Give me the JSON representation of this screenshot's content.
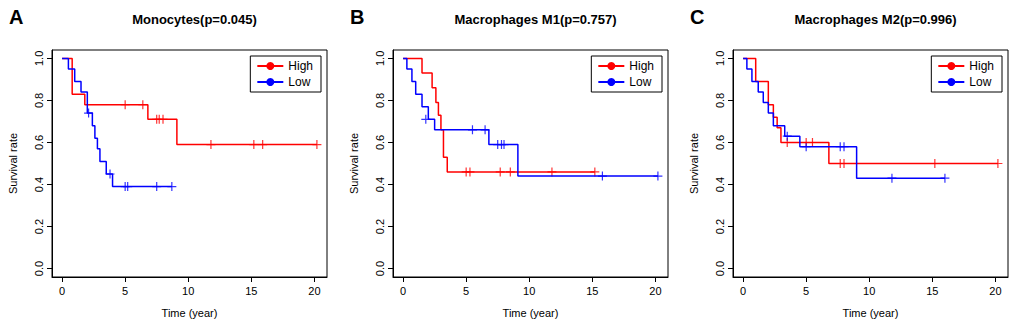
{
  "chart_data": [
    {
      "type": "line",
      "annotation": "A",
      "title": "Monocytes(p=0.045)",
      "x_label": "Time (year)",
      "y_label": "Survival rate",
      "xlim": [
        -0.8,
        21
      ],
      "xticks": [
        0,
        5,
        10,
        15,
        20
      ],
      "ylim": [
        -0.04,
        1.04
      ],
      "yticks": [
        {
          "value": 0,
          "label": "0.0"
        },
        0.2,
        0.4,
        0.6,
        0.8,
        {
          "value": 1,
          "label": "1.0"
        }
      ],
      "legend": "top-right",
      "grid": false,
      "line_style": "step",
      "series": [
        {
          "name": "High",
          "color": "#ff0000",
          "marker": "plus",
          "x": [
            0,
            0.8,
            1.8,
            6.8,
            9.1,
            20.2
          ],
          "values": [
            1,
            0.83,
            0.78,
            0.71,
            0.59,
            0.59
          ],
          "censored_x": [
            5.0,
            6.4,
            7.5,
            7.7,
            8.0,
            11.8,
            15.2,
            15.9,
            20.2
          ],
          "censored_values": [
            0.78,
            0.78,
            0.71,
            0.71,
            0.71,
            0.59,
            0.59,
            0.59,
            0.59
          ]
        },
        {
          "name": "Low",
          "color": "#0000ff",
          "marker": "plus",
          "x": [
            0,
            0.5,
            1.0,
            1.5,
            2.0,
            2.4,
            2.6,
            2.8,
            3.0,
            3.5,
            4.0,
            8.7
          ],
          "values": [
            1,
            0.95,
            0.89,
            0.84,
            0.74,
            0.68,
            0.62,
            0.57,
            0.51,
            0.45,
            0.39,
            0.39
          ],
          "censored_x": [
            2.1,
            3.8,
            5.0,
            5.2,
            7.5,
            8.7
          ],
          "censored_values": [
            0.74,
            0.45,
            0.39,
            0.39,
            0.39,
            0.39
          ]
        }
      ]
    },
    {
      "type": "line",
      "annotation": "B",
      "title": "Macrophages M1(p=0.757)",
      "x_label": "Time (year)",
      "y_label": "Survival rate",
      "xlim": [
        -0.8,
        21
      ],
      "xticks": [
        0,
        5,
        10,
        15,
        20
      ],
      "ylim": [
        -0.04,
        1.04
      ],
      "yticks": [
        {
          "value": 0,
          "label": "0.0"
        },
        0.2,
        0.4,
        0.6,
        0.8,
        {
          "value": 1,
          "label": "1.0"
        }
      ],
      "legend": "top-right",
      "grid": false,
      "line_style": "step",
      "series": [
        {
          "name": "High",
          "color": "#ff0000",
          "marker": "plus",
          "x": [
            0,
            1.5,
            2.3,
            2.6,
            2.8,
            3.0,
            3.2,
            3.5,
            15.2
          ],
          "values": [
            1,
            0.93,
            0.86,
            0.79,
            0.73,
            0.66,
            0.53,
            0.46,
            0.46
          ],
          "censored_x": [
            5.0,
            5.3,
            7.7,
            8.5,
            11.8,
            15.2
          ],
          "censored_values": [
            0.46,
            0.46,
            0.46,
            0.46,
            0.46,
            0.46
          ]
        },
        {
          "name": "Low",
          "color": "#0000ff",
          "marker": "plus",
          "x": [
            0,
            0.3,
            0.7,
            1.0,
            1.5,
            2.0,
            2.5,
            6.8,
            9.1,
            20.2
          ],
          "values": [
            1,
            0.95,
            0.89,
            0.83,
            0.77,
            0.71,
            0.66,
            0.59,
            0.44,
            0.44
          ],
          "censored_x": [
            1.8,
            5.5,
            6.5,
            7.5,
            7.8,
            8.0,
            15.8,
            20.2
          ],
          "censored_values": [
            0.71,
            0.66,
            0.66,
            0.59,
            0.59,
            0.59,
            0.44,
            0.44
          ]
        }
      ]
    },
    {
      "type": "line",
      "annotation": "C",
      "title": "Macrophages M2(p=0.996)",
      "x_label": "Time (year)",
      "y_label": "Survival rate",
      "xlim": [
        -0.8,
        21
      ],
      "xticks": [
        0,
        5,
        10,
        15,
        20
      ],
      "ylim": [
        -0.04,
        1.04
      ],
      "yticks": [
        {
          "value": 0,
          "label": "0.0"
        },
        0.2,
        0.4,
        0.6,
        0.8,
        {
          "value": 1,
          "label": "1.0"
        }
      ],
      "legend": "top-right",
      "grid": false,
      "line_style": "step",
      "series": [
        {
          "name": "High",
          "color": "#ff0000",
          "marker": "plus",
          "x": [
            0,
            1.0,
            2.0,
            2.4,
            2.7,
            3.0,
            6.8,
            20.2
          ],
          "values": [
            1,
            0.89,
            0.78,
            0.72,
            0.67,
            0.6,
            0.5,
            0.5
          ],
          "censored_x": [
            3.5,
            5.0,
            5.5,
            7.7,
            8.0,
            15.2,
            20.2
          ],
          "censored_values": [
            0.6,
            0.6,
            0.6,
            0.5,
            0.5,
            0.5,
            0.5
          ]
        },
        {
          "name": "Low",
          "color": "#0000ff",
          "marker": "plus",
          "x": [
            0,
            0.3,
            0.7,
            1.2,
            1.6,
            2.0,
            2.4,
            3.3,
            4.5,
            9.0,
            16.0
          ],
          "values": [
            1,
            0.95,
            0.89,
            0.84,
            0.79,
            0.74,
            0.68,
            0.63,
            0.58,
            0.43,
            0.43
          ],
          "censored_x": [
            3.5,
            5.0,
            7.7,
            8.0,
            11.8,
            16.0
          ],
          "censored_values": [
            0.63,
            0.58,
            0.58,
            0.58,
            0.43,
            0.43
          ]
        }
      ]
    }
  ]
}
